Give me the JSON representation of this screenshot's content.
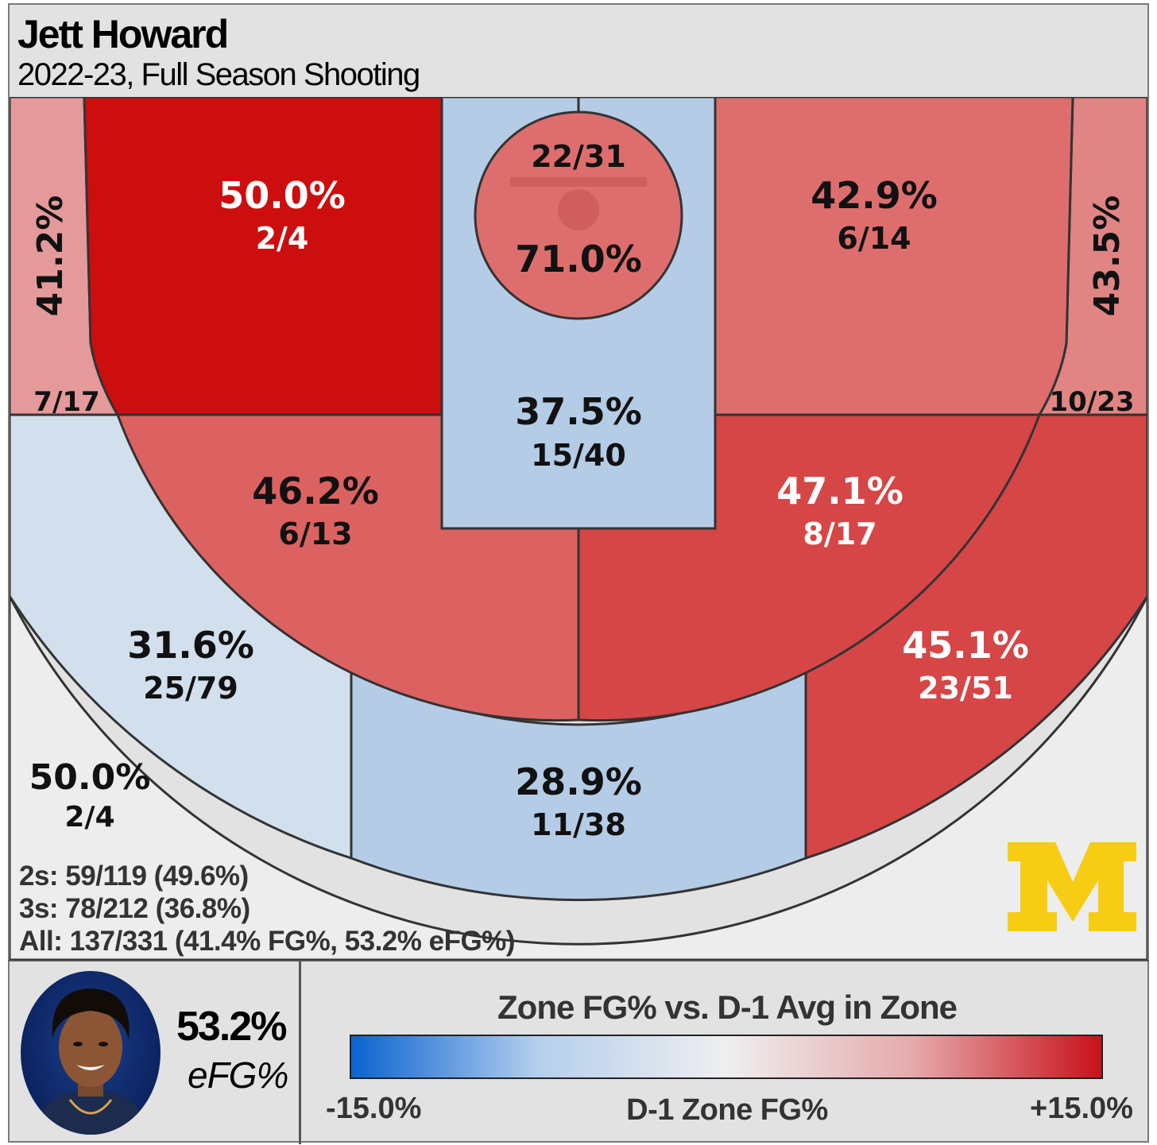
{
  "header": {
    "title": "Jett Howard",
    "subtitle": "2022-23, Full Season Shooting"
  },
  "chart_data": {
    "type": "heatmap",
    "title": "Jett Howard",
    "subtitle": "2022-23, Full Season Shooting",
    "zones": [
      {
        "id": "rim",
        "name": "Restricted area",
        "pct_label": "71.0%",
        "made_label": "22/31",
        "made": 22,
        "attempts": 31,
        "diff": 6,
        "color": "#de6e6e"
      },
      {
        "id": "paint",
        "name": "Paint (non-RA)",
        "pct_label": "37.5%",
        "made_label": "15/40",
        "made": 15,
        "attempts": 40,
        "diff": -4,
        "color": "#b4cce6"
      },
      {
        "id": "left-baseline-mid",
        "name": "Left baseline mid-range",
        "pct_label": "50.0%",
        "made_label": "2/4",
        "made": 2,
        "attempts": 4,
        "diff": 15,
        "color": "#cc0e0e"
      },
      {
        "id": "right-baseline-mid",
        "name": "Right baseline mid-range",
        "pct_label": "42.9%",
        "made_label": "6/14",
        "made": 6,
        "attempts": 14,
        "diff": 6,
        "color": "#de6e6e"
      },
      {
        "id": "left-elbow-mid",
        "name": "Left elbow mid-range",
        "pct_label": "46.2%",
        "made_label": "6/13",
        "made": 6,
        "attempts": 13,
        "diff": 7,
        "color": "#dc6262"
      },
      {
        "id": "right-elbow-mid",
        "name": "Right elbow mid-range",
        "pct_label": "47.1%",
        "made_label": "8/17",
        "made": 8,
        "attempts": 17,
        "diff": 9,
        "color": "#d64646"
      },
      {
        "id": "left-corner-3",
        "name": "Left corner 3",
        "pct_label": "41.2%",
        "made_label": "7/17",
        "made": 7,
        "attempts": 17,
        "diff": 4,
        "color": "#e49a9a"
      },
      {
        "id": "right-corner-3",
        "name": "Right corner 3",
        "pct_label": "43.5%",
        "made_label": "10/23",
        "made": 10,
        "attempts": 23,
        "diff": 5,
        "color": "#e08484"
      },
      {
        "id": "left-wing-3",
        "name": "Left wing 3",
        "pct_label": "31.6%",
        "made_label": "25/79",
        "made": 25,
        "attempts": 79,
        "diff": -2,
        "color": "#d2e0ee"
      },
      {
        "id": "top-key-3",
        "name": "Top of key 3",
        "pct_label": "28.9%",
        "made_label": "11/38",
        "made": 11,
        "attempts": 38,
        "diff": -4,
        "color": "#b4cce6"
      },
      {
        "id": "right-wing-3",
        "name": "Right wing 3",
        "pct_label": "45.1%",
        "made_label": "23/51",
        "made": 23,
        "attempts": 51,
        "diff": 10,
        "color": "#d64646"
      },
      {
        "id": "deep-3",
        "name": "Deep 3",
        "pct_label": "50.0%",
        "made_label": "2/4",
        "made": 2,
        "attempts": 4,
        "diff": 0,
        "color": "#ededed"
      }
    ],
    "legend": {
      "title": "Zone FG% vs. D-1 Avg in Zone",
      "min_label": "-15.0%",
      "mid_label": "D-1 Zone FG%",
      "max_label": "+15.0%",
      "range": [
        -15,
        15
      ],
      "colors": [
        "#0a63d0",
        "#b5cfee",
        "#efefef",
        "#e5a9ab",
        "#c8111a"
      ]
    }
  },
  "summary": {
    "twos": "2s: 59/119 (49.6%)",
    "threes": "3s: 78/212 (36.8%)",
    "all": "All: 137/331 (41.4% FG%, 53.2% eFG%)"
  },
  "player": {
    "efg_value": "53.2%",
    "efg_label": "eFG%"
  },
  "logo": {
    "icon": "michigan-block-m-logo",
    "color": "#f7cc14"
  }
}
